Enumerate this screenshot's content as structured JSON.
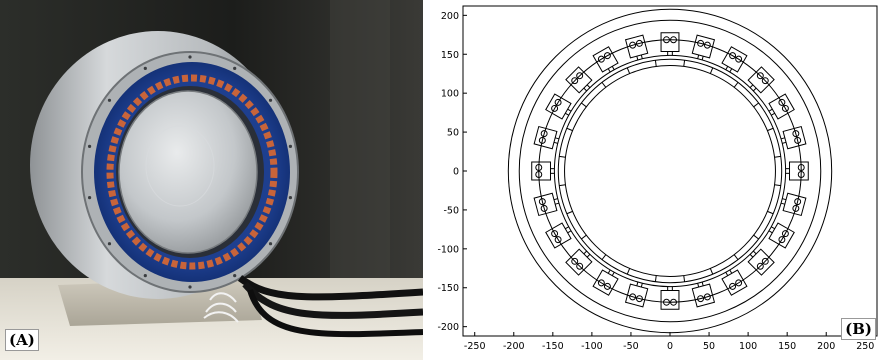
{
  "panels": {
    "photo": {
      "label": "(A)"
    },
    "drawing": {
      "label": "(B)",
      "x_ticks": [
        "-250",
        "-200",
        "-150",
        "-100",
        "-50",
        "0",
        "50",
        "100",
        "150",
        "200",
        "250"
      ],
      "y_ticks": [
        "200",
        "150",
        "100",
        "50",
        "0",
        "-50",
        "-100",
        "-150",
        "-200"
      ],
      "x_range": [
        -265,
        265
      ],
      "y_range": [
        -212,
        212
      ],
      "slot_count": 24
    }
  }
}
